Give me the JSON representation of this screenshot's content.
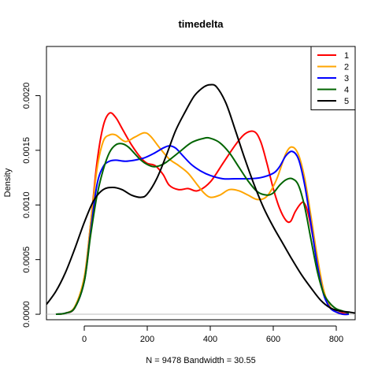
{
  "chart_data": {
    "type": "line",
    "title": "timedelta",
    "xlabel": "N = 9478   Bandwidth = 30.55",
    "ylabel": "Density",
    "xlim": [
      -120,
      860
    ],
    "ylim": [
      -5e-05,
      0.00245
    ],
    "x_ticks": [
      0,
      200,
      400,
      600,
      800
    ],
    "x_tick_labels": [
      "0",
      "200",
      "400",
      "600",
      "800"
    ],
    "y_ticks": [
      0,
      0.0005,
      0.001,
      0.0015,
      0.002
    ],
    "y_tick_labels": [
      "0.0000",
      "0.0005",
      "0.0010",
      "0.0015",
      "0.0020"
    ],
    "grid": false,
    "legend_position": "top-right",
    "series": [
      {
        "name": "1",
        "color": "#ff0000",
        "x": [
          -90,
          -60,
          -30,
          0,
          20,
          40,
          60,
          80,
          100,
          120,
          150,
          180,
          200,
          225,
          250,
          270,
          300,
          330,
          360,
          400,
          440,
          480,
          510,
          540,
          560,
          580,
          600,
          620,
          640,
          655,
          670,
          690,
          700,
          710,
          725,
          740,
          760,
          780,
          800,
          820,
          840
        ],
        "y": [
          0,
          1e-05,
          6e-05,
          0.00032,
          0.00082,
          0.00138,
          0.00172,
          0.00184,
          0.0018,
          0.0017,
          0.00155,
          0.00143,
          0.00138,
          0.00136,
          0.00128,
          0.00118,
          0.00114,
          0.00115,
          0.00113,
          0.00121,
          0.00138,
          0.00155,
          0.00165,
          0.00167,
          0.00158,
          0.00138,
          0.00115,
          0.00097,
          0.00086,
          0.00085,
          0.00094,
          0.00102,
          0.00101,
          0.00093,
          0.00072,
          0.00046,
          0.00021,
          7e-05,
          2e-05,
          1e-05,
          0
        ]
      },
      {
        "name": "2",
        "color": "#ffa500",
        "x": [
          -90,
          -60,
          -30,
          0,
          20,
          40,
          60,
          80,
          100,
          130,
          160,
          190,
          210,
          240,
          270,
          300,
          330,
          360,
          380,
          400,
          430,
          460,
          490,
          520,
          550,
          580,
          610,
          640,
          660,
          680,
          700,
          720,
          740,
          760,
          780,
          800,
          820,
          840
        ],
        "y": [
          0,
          1e-05,
          7e-05,
          0.00034,
          0.00082,
          0.00132,
          0.00158,
          0.00164,
          0.00164,
          0.00158,
          0.00162,
          0.00166,
          0.00163,
          0.00152,
          0.00142,
          0.00136,
          0.00129,
          0.00118,
          0.00111,
          0.00107,
          0.00109,
          0.00114,
          0.00113,
          0.00109,
          0.00105,
          0.00108,
          0.00123,
          0.00147,
          0.00153,
          0.00146,
          0.00124,
          0.00089,
          0.00052,
          0.00022,
          7e-05,
          2e-05,
          0,
          0
        ]
      },
      {
        "name": "3",
        "color": "#0000ff",
        "x": [
          -90,
          -60,
          -30,
          0,
          20,
          40,
          60,
          80,
          100,
          130,
          160,
          190,
          220,
          250,
          270,
          290,
          310,
          340,
          370,
          400,
          440,
          480,
          520,
          560,
          600,
          620,
          640,
          660,
          680,
          700,
          720,
          740,
          760,
          780,
          800,
          820,
          840
        ],
        "y": [
          0,
          1e-05,
          6e-05,
          0.0003,
          0.00075,
          0.00118,
          0.00135,
          0.0014,
          0.00141,
          0.0014,
          0.00141,
          0.00143,
          0.00147,
          0.00152,
          0.00154,
          0.00152,
          0.00146,
          0.00137,
          0.00131,
          0.00127,
          0.00124,
          0.00124,
          0.00124,
          0.00125,
          0.00129,
          0.00135,
          0.00145,
          0.00149,
          0.00142,
          0.00118,
          0.00082,
          0.00045,
          0.00018,
          6e-05,
          2e-05,
          0,
          0
        ]
      },
      {
        "name": "4",
        "color": "#006400",
        "x": [
          -90,
          -60,
          -30,
          0,
          20,
          40,
          60,
          80,
          100,
          120,
          140,
          160,
          180,
          200,
          220,
          240,
          260,
          300,
          340,
          380,
          400,
          430,
          460,
          490,
          520,
          550,
          580,
          600,
          620,
          640,
          660,
          680,
          700,
          720,
          740,
          760,
          780,
          800,
          820,
          840
        ],
        "y": [
          0,
          1e-05,
          6e-05,
          0.0003,
          0.00072,
          0.00108,
          0.00132,
          0.00148,
          0.00155,
          0.00156,
          0.00153,
          0.00147,
          0.00141,
          0.00137,
          0.00135,
          0.00136,
          0.00139,
          0.00148,
          0.00157,
          0.00161,
          0.00161,
          0.00157,
          0.00148,
          0.00135,
          0.00122,
          0.00112,
          0.00109,
          0.00111,
          0.00118,
          0.00123,
          0.00124,
          0.00118,
          0.00098,
          0.00068,
          0.00039,
          0.00019,
          0.0001,
          5e-05,
          3e-05,
          1e-05
        ]
      },
      {
        "name": "5",
        "color": "#000000",
        "x": [
          -120,
          -90,
          -60,
          -30,
          0,
          30,
          60,
          90,
          120,
          150,
          180,
          200,
          230,
          260,
          290,
          320,
          350,
          380,
          400,
          420,
          450,
          480,
          510,
          540,
          570,
          600,
          630,
          660,
          690,
          720,
          750,
          780,
          810,
          840,
          860
        ],
        "y": [
          9e-05,
          0.00021,
          0.00038,
          0.0006,
          0.00084,
          0.00104,
          0.00114,
          0.00116,
          0.00114,
          0.00109,
          0.00107,
          0.0011,
          0.00124,
          0.00145,
          0.00168,
          0.00185,
          0.002,
          0.00208,
          0.0021,
          0.00208,
          0.00193,
          0.00168,
          0.00142,
          0.00118,
          0.00097,
          0.0008,
          0.00065,
          0.0005,
          0.00036,
          0.00024,
          0.00013,
          6e-05,
          3e-05,
          2e-05,
          1e-05
        ]
      }
    ]
  }
}
